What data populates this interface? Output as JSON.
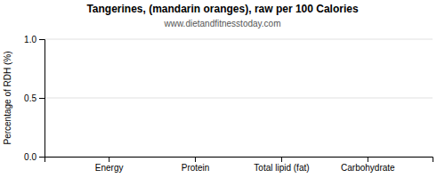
{
  "chart_data": {
    "type": "bar",
    "title": "Tangerines, (mandarin oranges), raw per 100 Calories",
    "subtitle": "www.dietandfitnesstoday.com",
    "categories": [
      "Energy",
      "Protein",
      "Total lipid (fat)",
      "Carbohydrate"
    ],
    "values": [
      0.0,
      0.0,
      0.0,
      0.0
    ],
    "color": "#4472c4",
    "ylabel": "Percentage of RDH (%)",
    "ylim": [
      0.0,
      1.0
    ],
    "yticks": [
      {
        "value": 0.0,
        "label": "0.0"
      },
      {
        "value": 0.5,
        "label": "0.5"
      },
      {
        "value": 1.0,
        "label": "1.0"
      }
    ],
    "grid": true
  }
}
